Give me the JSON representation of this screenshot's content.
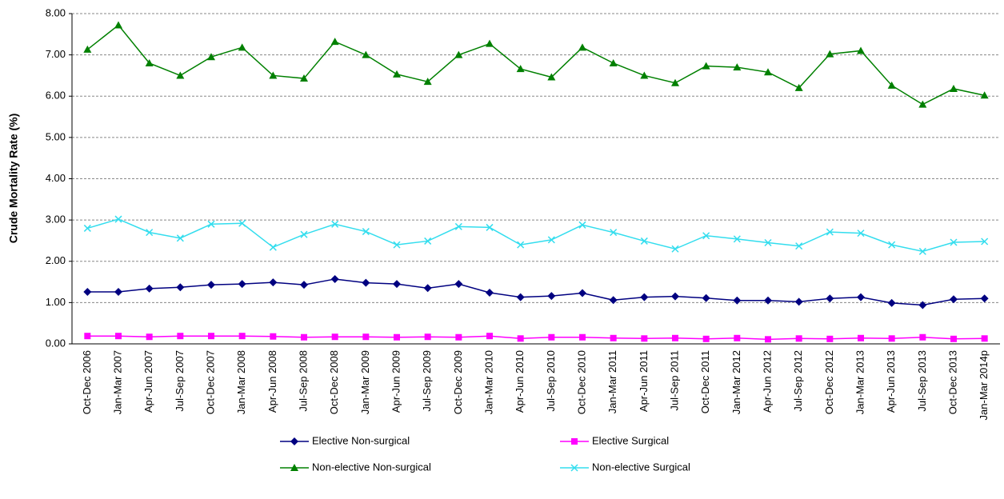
{
  "chart_data": {
    "type": "line",
    "y_label": "Crude Mortality Rate (%)",
    "categories": [
      "Oct-Dec 2006",
      "Jan-Mar 2007",
      "Apr-Jun 2007",
      "Jul-Sep 2007",
      "Oct-Dec 2007",
      "Jan-Mar 2008",
      "Apr-Jun 2008",
      "Jul-Sep 2008",
      "Oct-Dec 2008",
      "Jan-Mar 2009",
      "Apr-Jun 2009",
      "Jul-Sep 2009",
      "Oct-Dec 2009",
      "Jan-Mar 2010",
      "Apr-Jun 2010",
      "Jul-Sep 2010",
      "Oct-Dec 2010",
      "Jan-Mar 2011",
      "Apr-Jun 2011",
      "Jul-Sep 2011",
      "Oct-Dec 2011",
      "Jan-Mar 2012",
      "Apr-Jun 2012",
      "Jul-Sep 2012",
      "Oct-Dec 2012",
      "Jan-Mar 2013",
      "Apr-Jun 2013",
      "Jul-Sep 2013",
      "Oct-Dec 2013",
      "Jan-Mar 2014p"
    ],
    "series": [
      {
        "name": "Elective Non-surgical",
        "color": "#000080",
        "marker": "diamond",
        "values": [
          1.26,
          1.26,
          1.34,
          1.37,
          1.43,
          1.45,
          1.49,
          1.43,
          1.57,
          1.48,
          1.45,
          1.35,
          1.45,
          1.24,
          1.13,
          1.16,
          1.23,
          1.06,
          1.13,
          1.15,
          1.11,
          1.05,
          1.05,
          1.02,
          1.1,
          1.13,
          0.99,
          0.94,
          1.08,
          1.1
        ]
      },
      {
        "name": "Elective Surgical",
        "color": "#ff00ff",
        "marker": "square",
        "values": [
          0.19,
          0.19,
          0.17,
          0.19,
          0.19,
          0.19,
          0.18,
          0.16,
          0.17,
          0.17,
          0.16,
          0.17,
          0.16,
          0.19,
          0.13,
          0.16,
          0.16,
          0.14,
          0.13,
          0.14,
          0.12,
          0.14,
          0.11,
          0.13,
          0.12,
          0.14,
          0.13,
          0.16,
          0.12,
          0.13
        ]
      },
      {
        "name": "Non-elective Non-surgical",
        "color": "#008000",
        "marker": "triangle",
        "values": [
          7.13,
          7.72,
          6.8,
          6.5,
          6.95,
          7.18,
          6.5,
          6.43,
          7.32,
          7.0,
          6.53,
          6.35,
          7.0,
          7.27,
          6.66,
          6.46,
          7.18,
          6.8,
          6.5,
          6.32,
          6.73,
          6.7,
          6.58,
          6.2,
          7.02,
          7.1,
          6.26,
          5.8,
          6.18,
          6.02
        ]
      },
      {
        "name": "Non-elective Surgical",
        "color": "#33ddee",
        "marker": "x",
        "values": [
          2.8,
          3.02,
          2.7,
          2.56,
          2.9,
          2.92,
          2.34,
          2.65,
          2.9,
          2.72,
          2.4,
          2.49,
          2.84,
          2.82,
          2.4,
          2.52,
          2.88,
          2.7,
          2.49,
          2.3,
          2.62,
          2.54,
          2.45,
          2.37,
          2.71,
          2.68,
          2.4,
          2.24,
          2.46,
          2.48
        ]
      }
    ],
    "ylim": [
      0,
      8
    ],
    "yticks": [
      {
        "value": 0,
        "label": "0.00"
      },
      {
        "value": 1,
        "label": "1.00"
      },
      {
        "value": 2,
        "label": "2.00"
      },
      {
        "value": 3,
        "label": "3.00"
      },
      {
        "value": 4,
        "label": "4.00"
      },
      {
        "value": 5,
        "label": "5.00"
      },
      {
        "value": 6,
        "label": "6.00"
      },
      {
        "value": 7,
        "label": "7.00"
      },
      {
        "value": 8,
        "label": "8.00"
      }
    ],
    "grid": true,
    "legend": "bottom"
  }
}
